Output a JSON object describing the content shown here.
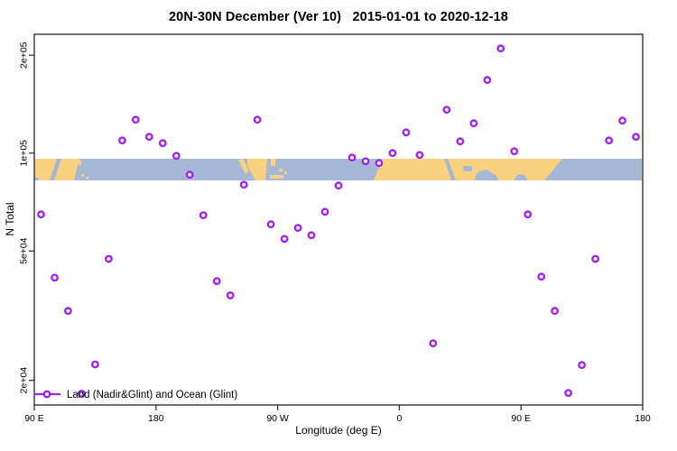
{
  "legend": {
    "label": "Land (Nadir&Glint) and Ocean (Glint)"
  },
  "colors": {
    "marker": "#A020F0",
    "marker_fill": "#FFFFFF",
    "land": "#FAD27F",
    "ocean": "#A7B7D6",
    "axis": "#333333"
  },
  "chart_data": {
    "type": "scatter",
    "title": "20N-30N December (Ver 10)   2015-01-01 to 2020-12-18",
    "xlabel": "Longitude (deg E)",
    "ylabel": "N Total",
    "grid": false,
    "legend_position": "bottom-left",
    "x_axis": {
      "description": "longitude increasing eastward from 90E, wrapping past 180 and 0 back to 180",
      "range_deg": [
        90,
        540
      ],
      "ticks_deg": [
        90,
        180,
        270,
        360,
        450,
        540
      ],
      "tick_labels": [
        "90 E",
        "180",
        "90 W",
        "0",
        "90 E",
        "180"
      ]
    },
    "y_axis": {
      "scale": "log10",
      "range": [
        16800,
        232000
      ],
      "ticks": [
        20000,
        50000,
        100000,
        200000
      ],
      "tick_labels": [
        "2e+04",
        "5e+04",
        "1e+05",
        "2e+05"
      ]
    },
    "map_strip": {
      "note": "coastline strip of the 20N-30N latitude band drawn as a horizontal band across the plot",
      "n_value_range": [
        82500,
        96000
      ]
    },
    "series": [
      {
        "name": "Land (Nadir&Glint) and Ocean (Glint)",
        "marker": "open-circle",
        "points_lon_n": [
          [
            95,
            64800
          ],
          [
            105,
            41400
          ],
          [
            115,
            32700
          ],
          [
            125,
            18200
          ],
          [
            135,
            22400
          ],
          [
            145,
            47300
          ],
          [
            155,
            109400
          ],
          [
            165,
            126700
          ],
          [
            175,
            112200
          ],
          [
            185,
            107300
          ],
          [
            195,
            98100
          ],
          [
            205,
            85800
          ],
          [
            215,
            64400
          ],
          [
            225,
            40400
          ],
          [
            235,
            36500
          ],
          [
            245,
            80000
          ],
          [
            255,
            126700
          ],
          [
            265,
            60400
          ],
          [
            275,
            54500
          ],
          [
            285,
            58900
          ],
          [
            295,
            55900
          ],
          [
            305,
            66000
          ],
          [
            315,
            79500
          ],
          [
            325,
            96900
          ],
          [
            335,
            94400
          ],
          [
            345,
            93200
          ],
          [
            355,
            100000
          ],
          [
            365,
            115800
          ],
          [
            375,
            98700
          ],
          [
            385,
            26000
          ],
          [
            395,
            135900
          ],
          [
            405,
            108700
          ],
          [
            415,
            123500
          ],
          [
            425,
            167800
          ],
          [
            435,
            209900
          ],
          [
            445,
            101300
          ],
          [
            455,
            64800
          ],
          [
            465,
            41700
          ],
          [
            475,
            32700
          ],
          [
            485,
            18300
          ],
          [
            495,
            22300
          ],
          [
            505,
            47300
          ],
          [
            515,
            109400
          ],
          [
            525,
            125900
          ],
          [
            535,
            112200
          ]
        ]
      }
    ]
  }
}
